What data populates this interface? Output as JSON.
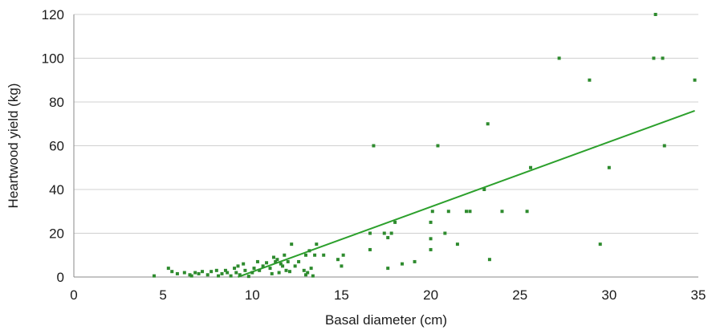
{
  "chart_data": {
    "type": "scatter",
    "title": "",
    "xlabel": "Basal diameter (cm)",
    "ylabel": "Heartwood yield (kg)",
    "xlim": [
      0,
      35
    ],
    "ylim": [
      0,
      120
    ],
    "x_ticks": [
      0,
      5,
      10,
      15,
      20,
      25,
      30,
      35
    ],
    "y_ticks": [
      0,
      20,
      40,
      60,
      80,
      100,
      120
    ],
    "grid": "horizontal",
    "marker_color": "#2e8b2e",
    "trendline_color": "#2ca02c",
    "trendline": {
      "x": [
        9.2,
        34.8
      ],
      "y": [
        0,
        76
      ]
    },
    "points": [
      [
        4.5,
        0.5
      ],
      [
        5.3,
        4
      ],
      [
        5.5,
        2.5
      ],
      [
        5.8,
        1.5
      ],
      [
        6.2,
        2
      ],
      [
        6.5,
        1
      ],
      [
        6.6,
        0.5
      ],
      [
        6.8,
        2
      ],
      [
        7.0,
        1.5
      ],
      [
        7.2,
        2.5
      ],
      [
        7.5,
        1
      ],
      [
        7.7,
        2.5
      ],
      [
        8.0,
        3
      ],
      [
        8.1,
        0.5
      ],
      [
        8.3,
        1.5
      ],
      [
        8.5,
        3
      ],
      [
        8.6,
        2
      ],
      [
        8.8,
        0.5
      ],
      [
        9.0,
        4
      ],
      [
        9.1,
        2
      ],
      [
        9.2,
        5
      ],
      [
        9.3,
        1
      ],
      [
        9.5,
        6
      ],
      [
        9.6,
        3
      ],
      [
        9.8,
        0.3
      ],
      [
        10.0,
        2
      ],
      [
        10.1,
        4
      ],
      [
        10.3,
        7
      ],
      [
        10.4,
        3
      ],
      [
        10.6,
        5
      ],
      [
        10.8,
        6.5
      ],
      [
        11.0,
        4
      ],
      [
        11.1,
        1.5
      ],
      [
        11.2,
        9
      ],
      [
        11.3,
        7
      ],
      [
        11.4,
        8
      ],
      [
        11.5,
        2
      ],
      [
        11.6,
        6
      ],
      [
        11.7,
        5
      ],
      [
        11.8,
        10
      ],
      [
        11.9,
        3
      ],
      [
        12.0,
        7
      ],
      [
        12.1,
        2.5
      ],
      [
        12.2,
        15
      ],
      [
        12.4,
        5
      ],
      [
        12.6,
        7
      ],
      [
        12.9,
        3
      ],
      [
        13.0,
        10
      ],
      [
        13.0,
        1
      ],
      [
        13.1,
        2
      ],
      [
        13.2,
        12
      ],
      [
        13.3,
        4
      ],
      [
        13.4,
        0.5
      ],
      [
        13.5,
        10
      ],
      [
        13.6,
        15
      ],
      [
        14.0,
        10
      ],
      [
        14.8,
        8
      ],
      [
        15.0,
        5
      ],
      [
        15.1,
        10
      ],
      [
        16.6,
        12.5
      ],
      [
        16.6,
        20
      ],
      [
        16.8,
        60
      ],
      [
        17.4,
        20
      ],
      [
        17.6,
        18
      ],
      [
        17.6,
        4
      ],
      [
        17.8,
        20
      ],
      [
        18.0,
        25
      ],
      [
        18.4,
        6
      ],
      [
        19.1,
        7
      ],
      [
        20.0,
        17.5
      ],
      [
        20.0,
        12.5
      ],
      [
        20.0,
        25
      ],
      [
        20.1,
        30
      ],
      [
        20.4,
        60
      ],
      [
        20.8,
        20
      ],
      [
        21.0,
        30
      ],
      [
        21.5,
        15
      ],
      [
        22.0,
        30
      ],
      [
        22.2,
        30
      ],
      [
        23.0,
        40
      ],
      [
        23.2,
        70
      ],
      [
        23.3,
        8
      ],
      [
        24.0,
        30
      ],
      [
        25.4,
        30
      ],
      [
        25.6,
        50
      ],
      [
        27.2,
        100
      ],
      [
        28.9,
        90
      ],
      [
        29.5,
        15
      ],
      [
        30.0,
        50
      ],
      [
        32.5,
        100
      ],
      [
        32.6,
        120
      ],
      [
        33.0,
        100
      ],
      [
        33.1,
        60
      ],
      [
        34.8,
        90
      ]
    ]
  }
}
